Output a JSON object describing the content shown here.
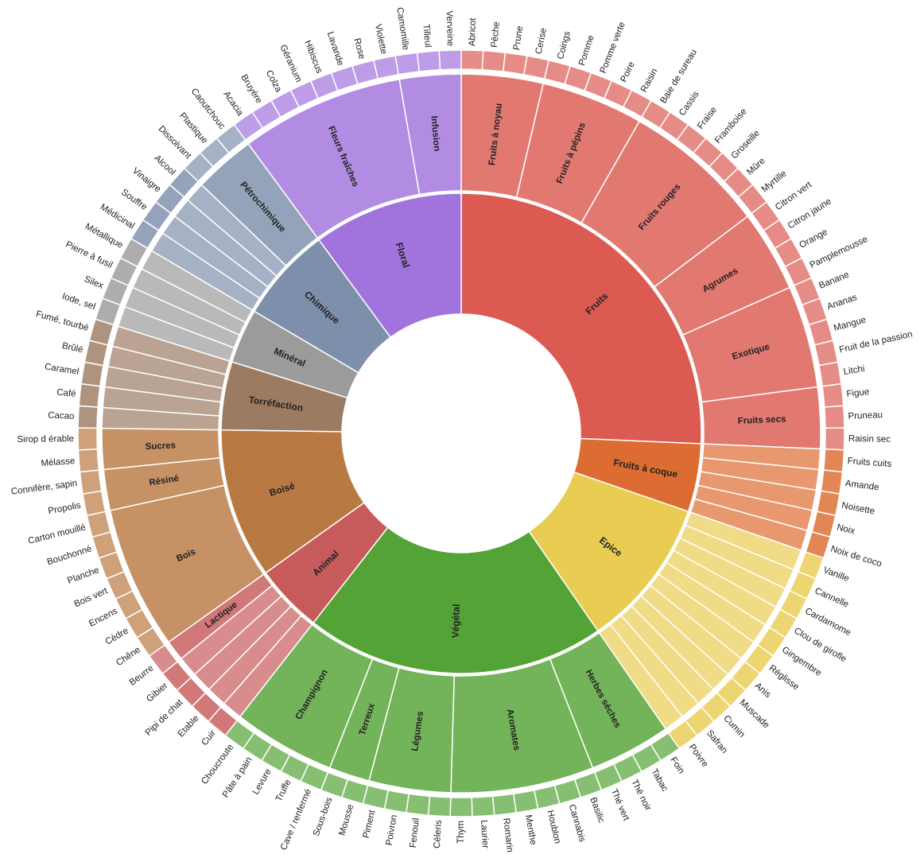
{
  "chart_data": {
    "type": "sunburst",
    "categories": [
      {
        "name": "Fruits",
        "color": "#db5b52",
        "children": [
          {
            "name": "Fruits à noyau",
            "items": [
              "Abricot",
              "Pêche",
              "Prune",
              "Cerise"
            ]
          },
          {
            "name": "Fruits à pépins",
            "items": [
              "Coings",
              "Pomme",
              "Pomme verte",
              "Poire",
              "Raisin"
            ]
          },
          {
            "name": "Fruits rouges",
            "items": [
              "Baie de sureau",
              "Cassis",
              "Fraise",
              "Framboise",
              "Groseille",
              "Mûre",
              "Myrtille"
            ]
          },
          {
            "name": "Agrumes",
            "items": [
              "Citron vert",
              "Citron jaune",
              "Orange",
              "Pamplemousse"
            ]
          },
          {
            "name": "Exotique",
            "items": [
              "Banane",
              "Ananas",
              "Mangue",
              "Fruit de la passion",
              "Litchi"
            ]
          },
          {
            "name": "Fruits secs",
            "items": [
              "Figue",
              "Pruneau",
              "Raisin sec"
            ]
          }
        ]
      },
      {
        "name": "Fruits à coque",
        "color": "#dc6c31",
        "children": [
          {
            "name": "",
            "items": [
              "Fruits cuits",
              "Amande",
              "Noisette",
              "Noix",
              "Noix de coco"
            ]
          }
        ]
      },
      {
        "name": "Epice",
        "color": "#e9cc52",
        "children": [
          {
            "name": "",
            "items": [
              "Vanille",
              "Cannelle",
              "Cardamome",
              "Clou de girofle",
              "Gingembre",
              "Réglisse",
              "Anis",
              "Muscade",
              "Cumin",
              "Safran",
              "Poivre"
            ]
          }
        ]
      },
      {
        "name": "Végétal",
        "color": "#54a336",
        "children": [
          {
            "name": "Herbes sèches",
            "items": [
              "Foin",
              "Tabac",
              "Thé noir",
              "Thé vert"
            ]
          },
          {
            "name": "Aromates",
            "items": [
              "Basilic",
              "Cannabis",
              "Houblon",
              "Menthe",
              "Romarin",
              "Laurier",
              "Thym"
            ]
          },
          {
            "name": "Légumes",
            "items": [
              "Céleris",
              "Fenouil",
              "Poivron",
              "Piment"
            ]
          },
          {
            "name": "Terreux",
            "items": [
              "Mousse",
              "Sous-bois"
            ]
          },
          {
            "name": "Champignon",
            "items": [
              "Cave / renfermé",
              "Truffe",
              "Levure",
              "Pâte à pain",
              "Choucroute"
            ]
          }
        ]
      },
      {
        "name": "Animal",
        "color": "#c75b5b",
        "children": [
          {
            "name": "",
            "items": [
              "Cuir",
              "Etable",
              "Pipi de chat",
              "Gibier"
            ]
          },
          {
            "name": "Lactique",
            "items": [
              "Beurre"
            ]
          }
        ]
      },
      {
        "name": "Boisé",
        "color": "#b97943",
        "children": [
          {
            "name": "Bois",
            "items": [
              "Chêne",
              "Cèdre",
              "Encens",
              "Bois vert",
              "Planche",
              "Bouchonné",
              "Carton mouillé"
            ]
          },
          {
            "name": "Résiné",
            "items": [
              "Propolis",
              "Connifère, sapin"
            ]
          },
          {
            "name": "Sucres",
            "items": [
              "Mélasse",
              "Sirop d érable"
            ]
          }
        ]
      },
      {
        "name": "Torréfaction",
        "color": "#9c7b63",
        "children": [
          {
            "name": "",
            "items": [
              "Cacao",
              "Café",
              "Caramel",
              "Brûlé",
              "Fumé, tourbé"
            ]
          }
        ]
      },
      {
        "name": "Minéral",
        "color": "#9b9b9b",
        "children": [
          {
            "name": "",
            "items": [
              "Iode, sel",
              "Silex",
              "Pierre à fusil",
              "Métallique"
            ]
          }
        ]
      },
      {
        "name": "Chimique",
        "color": "#7e8fab",
        "children": [
          {
            "name": "",
            "items": [
              "Médicinal",
              "Souffre",
              "Vinaigre",
              "Alcool"
            ]
          },
          {
            "name": "Pétrochimique",
            "items": [
              "Dissolvant",
              "Plastique",
              "Caoutchouc"
            ]
          }
        ]
      },
      {
        "name": "Floral",
        "color": "#a173dc",
        "children": [
          {
            "name": "Fleurs fraîches",
            "items": [
              "Acacia",
              "Bruyère",
              "Colza",
              "Géranium",
              "Hibiscus",
              "Lavande",
              "Rose",
              "Violette"
            ]
          },
          {
            "name": "Infusion",
            "items": [
              "Camomille",
              "Tilleul",
              "Verveine"
            ]
          }
        ]
      }
    ]
  }
}
